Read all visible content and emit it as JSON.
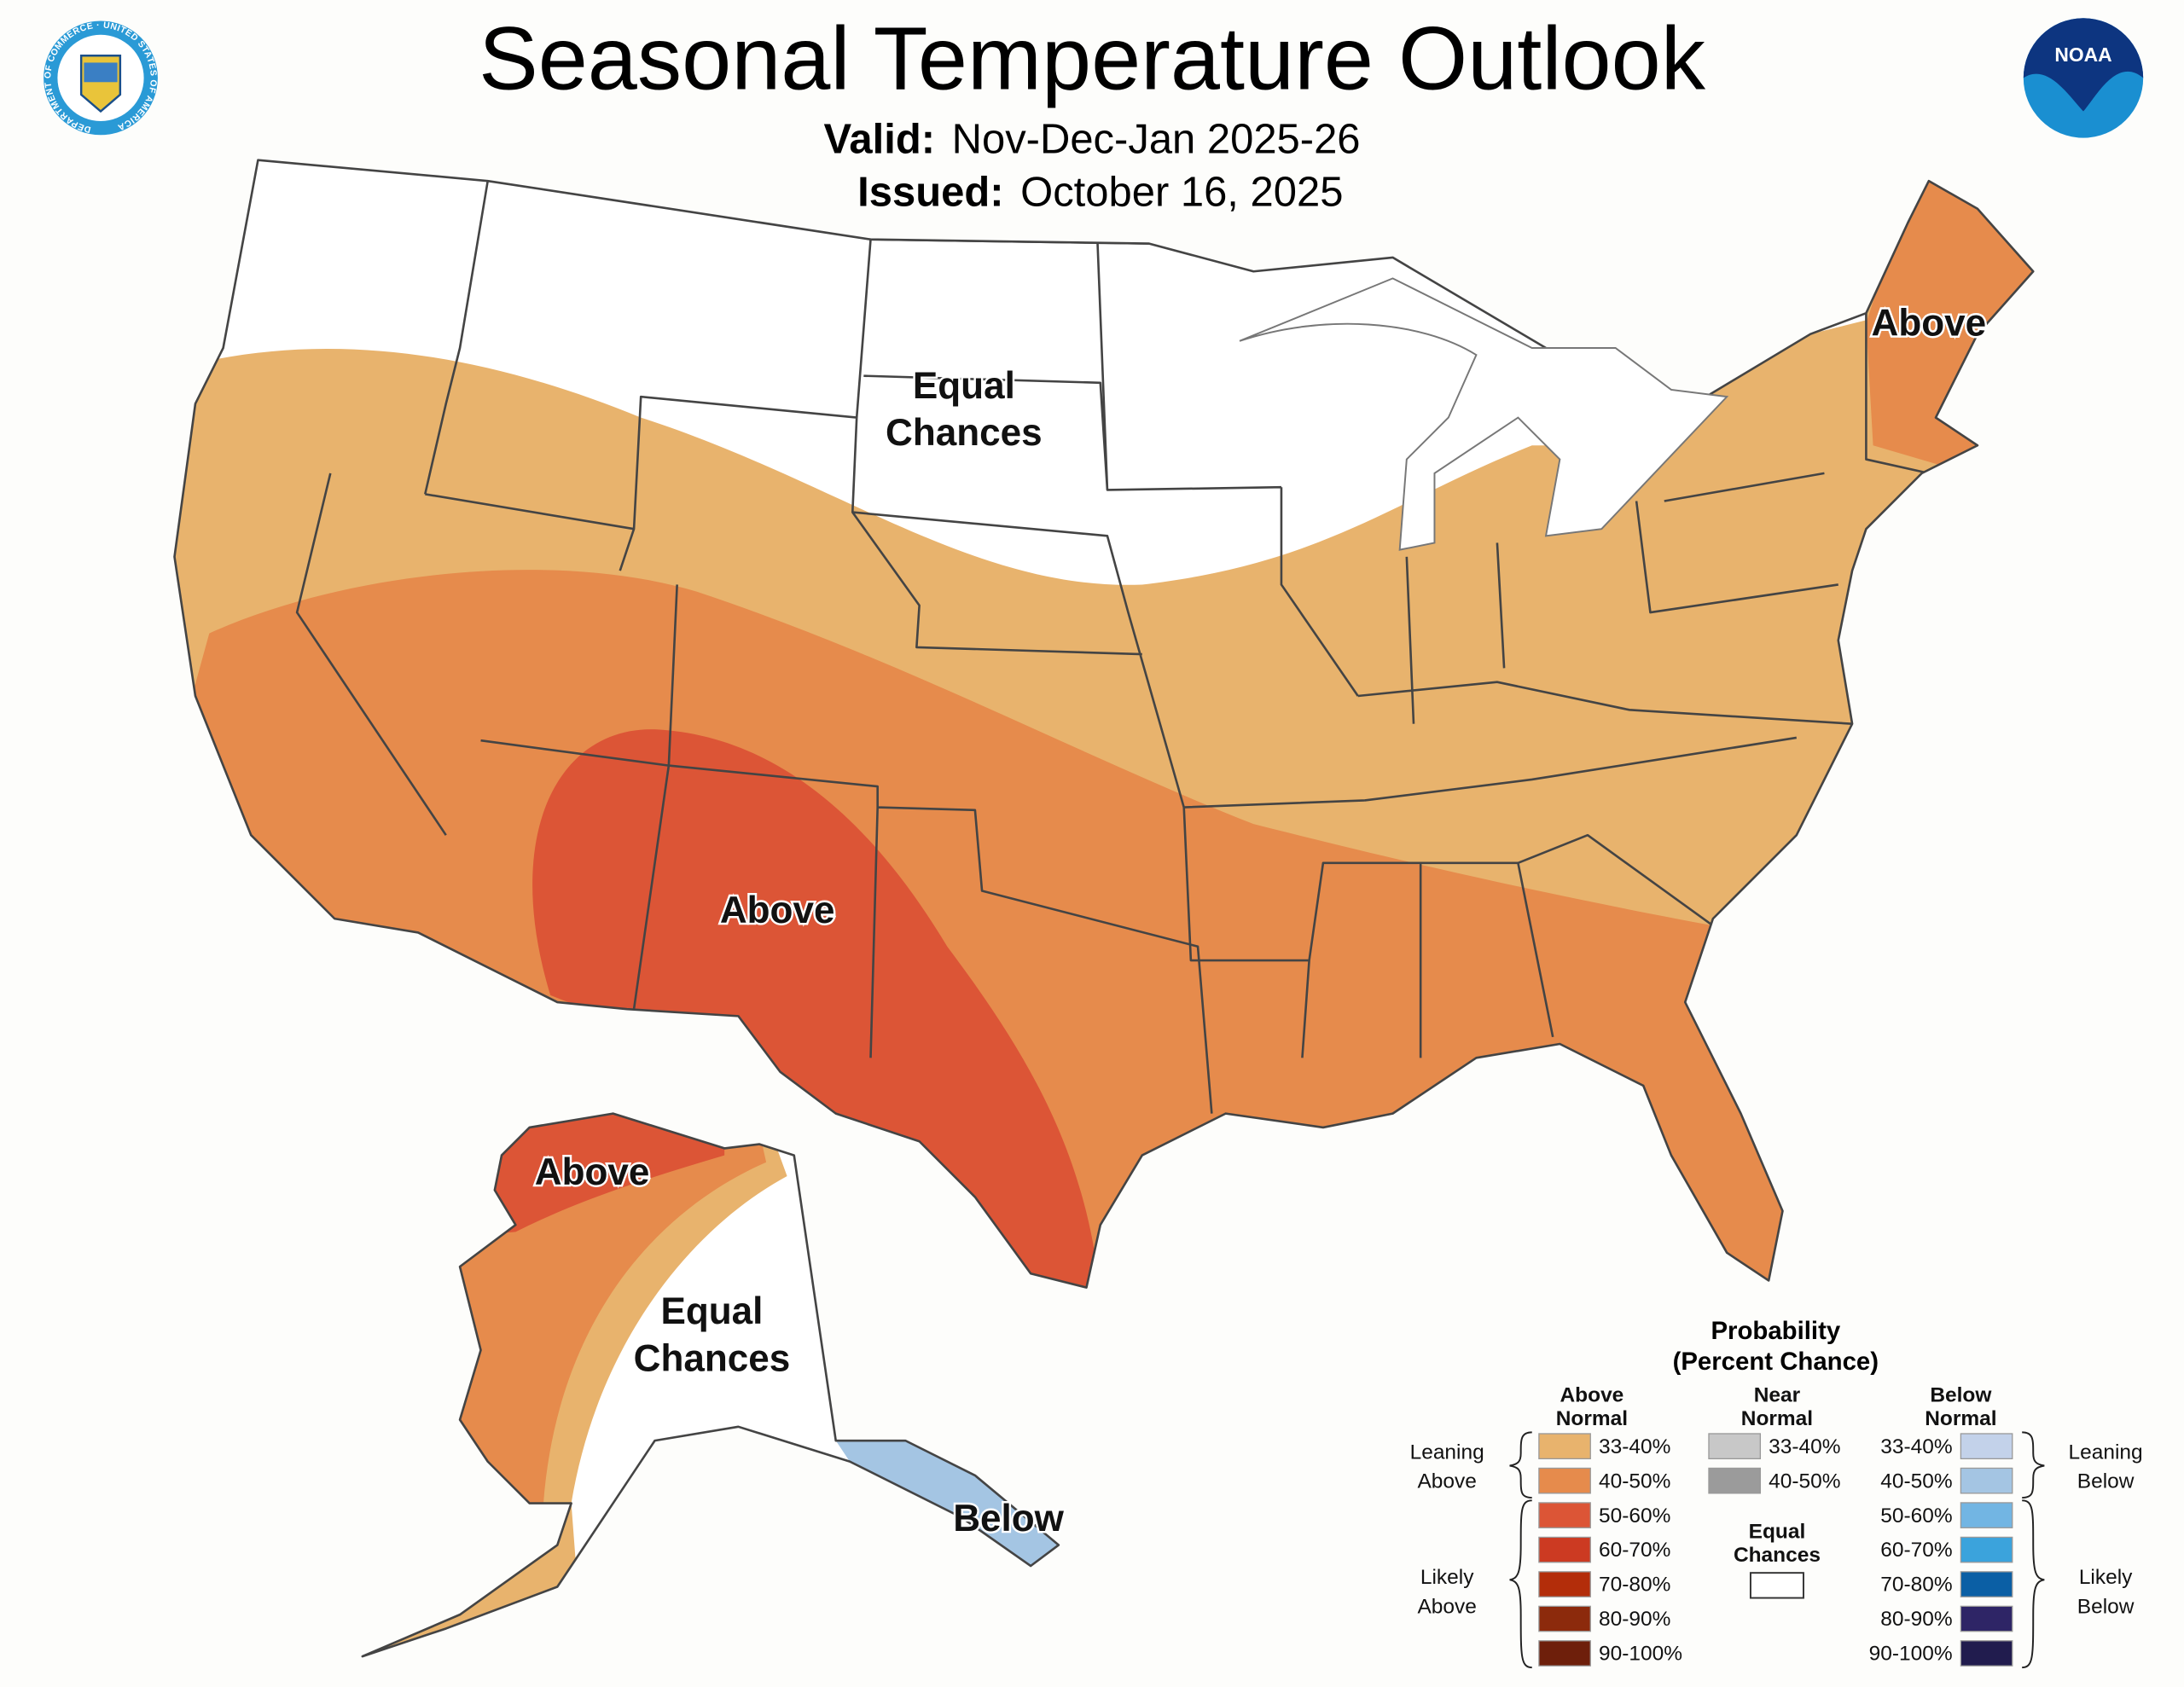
{
  "header": {
    "title": "Seasonal Temperature Outlook",
    "valid_label": "Valid:",
    "valid_value": "Nov-Dec-Jan 2025-26",
    "issued_label": "Issued:",
    "issued_value": "October 16, 2025",
    "left_logo": "Department of Commerce seal",
    "left_logo_text": "DEPARTMENT OF COMMERCE · UNITED STATES OF AMERICA",
    "right_logo": "NOAA logo",
    "right_logo_text": "NOAA"
  },
  "map": {
    "labels": {
      "conus_equal": [
        "Equal",
        "Chances"
      ],
      "conus_above_sw": "Above",
      "conus_above_ne": "Above",
      "alaska_above": "Above",
      "alaska_equal": [
        "Equal",
        "Chances"
      ],
      "alaska_below": "Below"
    },
    "colors": {
      "background": "#fdfdfb",
      "equal": "#ffffff",
      "border": "#444444"
    }
  },
  "legend": {
    "title": "Probability",
    "subtitle": "(Percent Chance)",
    "above_header": [
      "Above",
      "Normal"
    ],
    "near_header": [
      "Near",
      "Normal"
    ],
    "below_header": [
      "Below",
      "Normal"
    ],
    "leaning_above": [
      "Leaning",
      "Above"
    ],
    "likely_above": [
      "Likely",
      "Above"
    ],
    "leaning_below": [
      "Leaning",
      "Below"
    ],
    "likely_below": [
      "Likely",
      "Below"
    ],
    "equal_chances": [
      "Equal",
      "Chances"
    ],
    "above": [
      {
        "label": "33-40%",
        "color": "#e8b36d"
      },
      {
        "label": "40-50%",
        "color": "#e68b4c"
      },
      {
        "label": "50-60%",
        "color": "#dc5536"
      },
      {
        "label": "60-70%",
        "color": "#cc3a22"
      },
      {
        "label": "70-80%",
        "color": "#b32d0a"
      },
      {
        "label": "80-90%",
        "color": "#8c2a0c"
      },
      {
        "label": "90-100%",
        "color": "#6e1f0b"
      }
    ],
    "near": [
      {
        "label": "33-40%",
        "color": "#c8c8c8"
      },
      {
        "label": "40-50%",
        "color": "#9b9b9b"
      }
    ],
    "below": [
      {
        "label": "33-40%",
        "color": "#c3d2ea"
      },
      {
        "label": "40-50%",
        "color": "#a4c5e3"
      },
      {
        "label": "50-60%",
        "color": "#72b5e3"
      },
      {
        "label": "60-70%",
        "color": "#3ba3dc"
      },
      {
        "label": "70-80%",
        "color": "#0b5fa5"
      },
      {
        "label": "80-90%",
        "color": "#2e2566"
      },
      {
        "label": "90-100%",
        "color": "#211c4e"
      }
    ]
  }
}
